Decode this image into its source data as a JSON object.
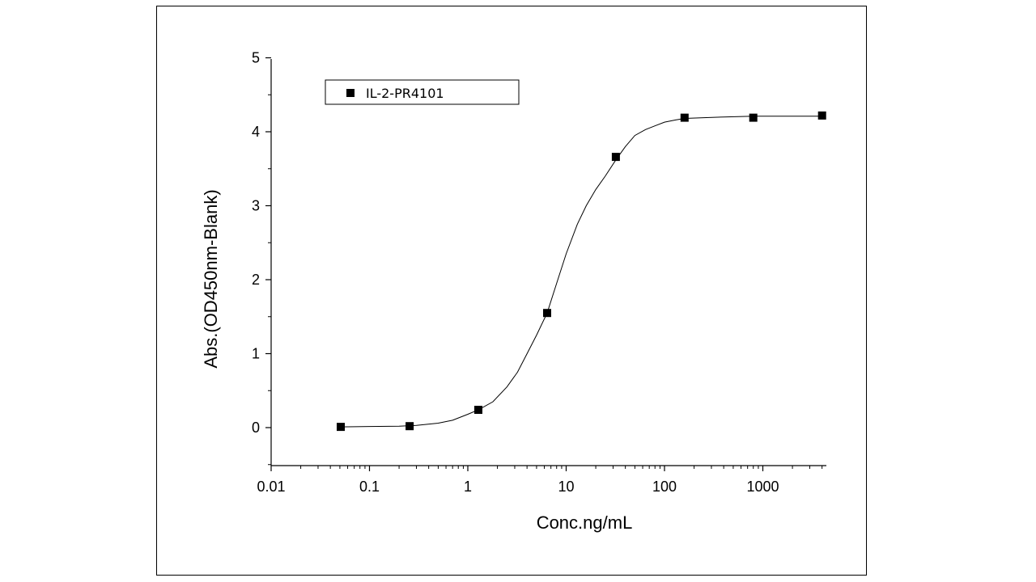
{
  "chart_data": {
    "type": "scatter",
    "title": "",
    "xlabel": "Conc.ng/mL",
    "ylabel": "Abs.(OD450nm-Blank)",
    "x_scale": "log",
    "xlim": [
      0.01,
      5000
    ],
    "ylim": [
      -0.5,
      5
    ],
    "x_ticks": [
      0.01,
      0.1,
      1,
      10,
      100,
      1000
    ],
    "x_tick_labels": [
      "0.01",
      "0.1",
      "1",
      "10",
      "100",
      "1000"
    ],
    "y_ticks": [
      0,
      1,
      2,
      3,
      4,
      5
    ],
    "y_tick_labels": [
      "0",
      "1",
      "2",
      "3",
      "4",
      "5"
    ],
    "grid": false,
    "legend_position": "top-left",
    "series": [
      {
        "name": "IL-2-PR4101",
        "marker": "square",
        "color": "#000000",
        "x": [
          0.051,
          0.256,
          1.28,
          6.4,
          32,
          160,
          800,
          4000
        ],
        "y": [
          0.01,
          0.02,
          0.24,
          1.55,
          3.66,
          4.19,
          4.19,
          4.22
        ]
      }
    ],
    "fit_curve": {
      "type": "4PL",
      "color": "#000000",
      "x": [
        0.051,
        0.1,
        0.2,
        0.3,
        0.5,
        0.7,
        1.0,
        1.28,
        1.8,
        2.5,
        3.2,
        4.0,
        5.0,
        6.4,
        8.0,
        10,
        13,
        16,
        20,
        25,
        32,
        40,
        50,
        64,
        80,
        100,
        130,
        160,
        250,
        400,
        800,
        1500,
        4000
      ],
      "y": [
        0.01,
        0.015,
        0.02,
        0.03,
        0.06,
        0.1,
        0.18,
        0.24,
        0.35,
        0.55,
        0.75,
        1.0,
        1.25,
        1.55,
        1.95,
        2.35,
        2.75,
        3.0,
        3.22,
        3.4,
        3.62,
        3.8,
        3.95,
        4.03,
        4.08,
        4.13,
        4.16,
        4.18,
        4.19,
        4.2,
        4.21,
        4.21,
        4.21
      ]
    }
  }
}
